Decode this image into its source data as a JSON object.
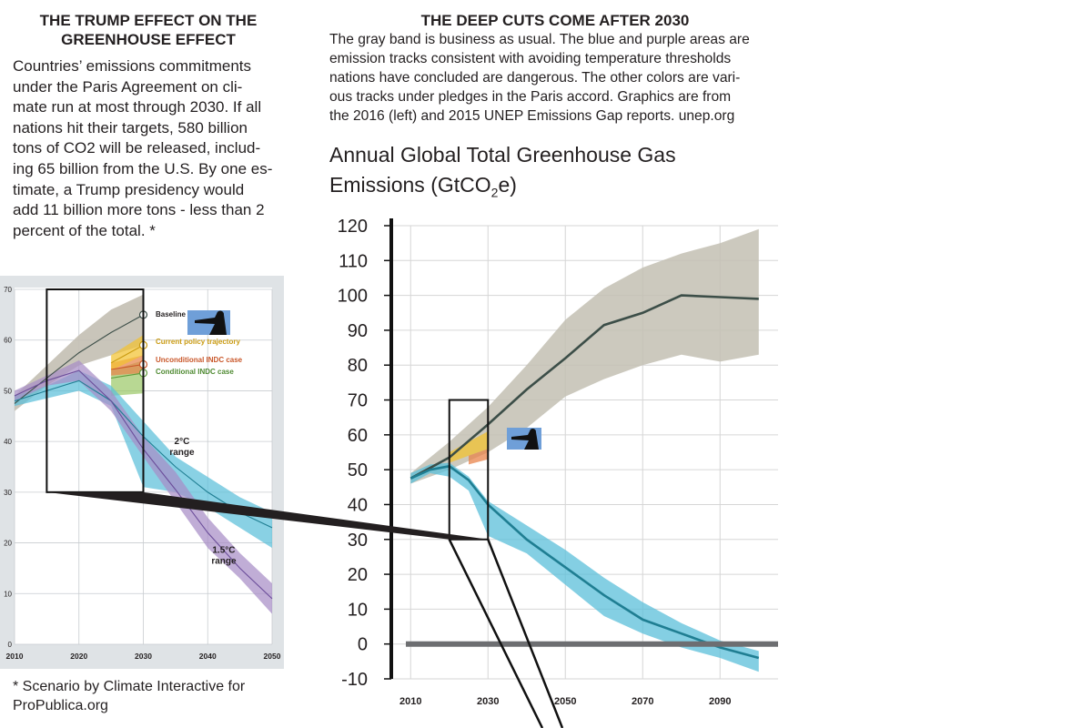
{
  "left_text": {
    "heading_line1": "THE TRUMP EFFECT ON THE",
    "heading_line2": "GREENHOUSE EFFECT",
    "paragraph_lines": [
      "Countries’ emissions commitments",
      "under the Paris Agreement on cli-",
      "mate run at most through 2030. If all",
      "nations hit their targets, 580 billion",
      "tons of CO2 will be released, includ-",
      "ing 65 billion from the U.S. By one es-",
      "timate, a Trump presidency would",
      "add 11 billion more tons - less than 2",
      "percent of the total. *"
    ],
    "footnote_line1": "* Scenario by Climate Interactive for",
    "footnote_line2": "ProPublica.org"
  },
  "right_text": {
    "heading": "THE DEEP CUTS COME AFTER 2030",
    "caption_lines": [
      "The gray band is business as usual. The blue and purple areas are",
      "emission tracks consistent with avoiding temperature thresholds",
      "nations have concluded are dangerous. The other colors are vari-",
      "ous tracks under pledges in the Paris accord. Graphics are from",
      "the 2016 (left) and 2015 UNEP Emissions Gap reports. unep.org"
    ],
    "chart_title_line1": "Annual Global Total Greenhouse Gas",
    "chart_title_line2_pre": "Emissions (GtCO",
    "chart_title_sub": "2",
    "chart_title_line2_post": "e)"
  },
  "colors": {
    "text": "#231f20",
    "baseline_band": "#c3bfb3",
    "baseline_line": "#3c4e48",
    "two_degree_band": "#5bbfd9",
    "two_degree_line": "#1f7e92",
    "one_five_band": "#a78dc6",
    "one_five_line": "#6b4d9a",
    "current_policy": "#f2c230",
    "unconditional": "#e8834a",
    "conditional": "#9cc96a",
    "left_panel_bg": "#dfe3e6",
    "zero_line": "#6d6e71",
    "photo_blue": "#6f9fd8"
  },
  "chart_data": [
    {
      "id": "left",
      "type": "area",
      "title": "",
      "xlabel": "",
      "ylabel": "",
      "xlim": [
        2010,
        2050
      ],
      "ylim": [
        0,
        70
      ],
      "x_ticks": [
        2010,
        2020,
        2030,
        2040,
        2050
      ],
      "y_ticks": [
        0,
        10,
        20,
        30,
        40,
        50,
        60,
        70
      ],
      "grid": true,
      "legend": [
        {
          "key": "baseline",
          "label": "Baseline"
        },
        {
          "key": "current_policy",
          "label": "Current policy trajectory"
        },
        {
          "key": "unconditional",
          "label": "Unconditional INDC case"
        },
        {
          "key": "conditional",
          "label": "Conditional INDC case"
        }
      ],
      "range_labels": [
        {
          "key": "two_degree",
          "line1": "2°C",
          "line2": "range",
          "x": 2036,
          "y": 39.5
        },
        {
          "key": "one_five",
          "line1": "1.5°C",
          "line2": "range",
          "x": 2042.5,
          "y": 18
        }
      ],
      "series": [
        {
          "name": "Baseline",
          "key": "baseline",
          "x": [
            2010,
            2015,
            2020,
            2025,
            2030
          ],
          "low": [
            46,
            51,
            55,
            57,
            59
          ],
          "high": [
            49,
            55,
            61,
            66,
            69
          ],
          "mid": [
            47.5,
            52.5,
            57.5,
            61.5,
            65
          ]
        },
        {
          "name": "Current policy trajectory",
          "key": "current_policy",
          "x": [
            2025,
            2030
          ],
          "low": [
            54,
            57
          ],
          "high": [
            57,
            61
          ],
          "mid": [
            55.5,
            59
          ]
        },
        {
          "name": "Unconditional INDC case",
          "key": "unconditional",
          "x": [
            2025,
            2030
          ],
          "low": [
            53,
            53.5
          ],
          "high": [
            55.5,
            57
          ],
          "mid": [
            54.2,
            55.2
          ]
        },
        {
          "name": "Conditional INDC case",
          "key": "conditional",
          "x": [
            2025,
            2030
          ],
          "low": [
            49,
            49.5
          ],
          "high": [
            54,
            56
          ],
          "mid": [
            52.5,
            53.5
          ]
        },
        {
          "name": "2°C range",
          "key": "two_degree",
          "x": [
            2010,
            2015,
            2020,
            2025,
            2030,
            2035,
            2040,
            2045,
            2050
          ],
          "low": [
            47,
            48.5,
            50,
            47,
            31,
            30,
            27,
            23,
            19
          ],
          "high": [
            49,
            51,
            54,
            51,
            44,
            37,
            33,
            29,
            26
          ],
          "mid": [
            48,
            50,
            52,
            48,
            41,
            35,
            30,
            26,
            23
          ]
        },
        {
          "name": "1.5°C range",
          "key": "one_five",
          "x": [
            2010,
            2015,
            2020,
            2025,
            2030,
            2035,
            2040,
            2045,
            2050
          ],
          "low": [
            48,
            51,
            52,
            46,
            37,
            28,
            19,
            13,
            6
          ],
          "high": [
            50,
            53,
            56,
            50,
            41,
            34,
            25,
            18,
            12
          ],
          "mid": [
            49,
            52,
            54,
            48,
            38.5,
            30.5,
            22,
            15,
            9
          ]
        }
      ],
      "zoom_box": {
        "x": [
          2015,
          2030
        ],
        "y": [
          30,
          70
        ]
      }
    },
    {
      "id": "right",
      "type": "area",
      "title": "Annual Global Total Greenhouse Gas Emissions (GtCO2e)",
      "xlabel": "",
      "ylabel": "",
      "xlim": [
        2005,
        2105
      ],
      "ylim": [
        -10,
        120
      ],
      "x_ticks": [
        2010,
        2030,
        2050,
        2070,
        2090
      ],
      "y_ticks": [
        120,
        110,
        100,
        90,
        80,
        70,
        60,
        50,
        40,
        30,
        20,
        10,
        0,
        -10
      ],
      "grid": true,
      "series": [
        {
          "name": "Baseline",
          "key": "baseline",
          "x": [
            2010,
            2020,
            2030,
            2040,
            2050,
            2060,
            2070,
            2080,
            2090,
            2100
          ],
          "low": [
            46,
            50,
            55,
            62,
            71,
            76,
            80,
            83,
            81,
            83
          ],
          "high": [
            49,
            58,
            68,
            80,
            93,
            102,
            108,
            112,
            115,
            119
          ],
          "mid": [
            47.5,
            53.5,
            63,
            73,
            82,
            91.5,
            95,
            100,
            99.5,
            99
          ]
        },
        {
          "name": "Current policy trajectory",
          "key": "current_policy",
          "x": [
            2020,
            2025,
            2030
          ],
          "low": [
            52,
            54,
            56
          ],
          "high": [
            55,
            58,
            61
          ],
          "mid": [
            53.5,
            56,
            58.5
          ]
        },
        {
          "name": "Unconditional INDC case",
          "key": "unconditional",
          "x": [
            2025,
            2030
          ],
          "low": [
            51.5,
            53
          ],
          "high": [
            54,
            56
          ],
          "mid": [
            52.7,
            54.5
          ]
        },
        {
          "name": "2°C range",
          "key": "two_degree",
          "x": [
            2010,
            2015,
            2020,
            2025,
            2030,
            2040,
            2050,
            2060,
            2070,
            2080,
            2090,
            2100
          ],
          "low": [
            46,
            49,
            48,
            44,
            31,
            26,
            17,
            8,
            3,
            -1,
            -4,
            -8
          ],
          "high": [
            49,
            51.5,
            52,
            48,
            41,
            34,
            27,
            19,
            12,
            6,
            1,
            -2
          ],
          "mid": [
            47.5,
            50,
            51,
            47,
            40,
            30,
            22,
            14,
            7,
            3,
            -1,
            -4
          ]
        }
      ],
      "zoom_box": {
        "x": [
          2020,
          2030
        ],
        "y": [
          30,
          70
        ]
      }
    }
  ]
}
